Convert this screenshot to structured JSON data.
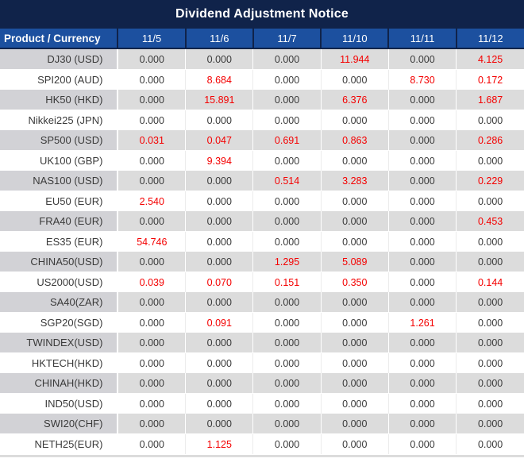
{
  "title": "Dividend Adjustment Notice",
  "colors": {
    "title_bg": "#10234a",
    "header_bg": "#1c509f",
    "row_gray": "#dcdcdc",
    "product_cell_gray": "#d2d2d6",
    "value_red": "#f40000",
    "value_black": "#3a3a3a"
  },
  "table": {
    "columns": [
      "Product / Currency",
      "11/5",
      "11/6",
      "11/7",
      "11/10",
      "11/11",
      "11/12"
    ],
    "rows": [
      {
        "product": "DJ30 (USD)",
        "values": [
          "0.000",
          "0.000",
          "0.000",
          "11.944",
          "0.000",
          "4.125"
        ],
        "red": [
          false,
          false,
          false,
          true,
          false,
          true
        ]
      },
      {
        "product": "SPI200 (AUD)",
        "values": [
          "0.000",
          "8.684",
          "0.000",
          "0.000",
          "8.730",
          "0.172"
        ],
        "red": [
          false,
          true,
          false,
          false,
          true,
          true
        ]
      },
      {
        "product": "HK50 (HKD)",
        "values": [
          "0.000",
          "15.891",
          "0.000",
          "6.376",
          "0.000",
          "1.687"
        ],
        "red": [
          false,
          true,
          false,
          true,
          false,
          true
        ]
      },
      {
        "product": "Nikkei225 (JPN)",
        "values": [
          "0.000",
          "0.000",
          "0.000",
          "0.000",
          "0.000",
          "0.000"
        ],
        "red": [
          false,
          false,
          false,
          false,
          false,
          false
        ]
      },
      {
        "product": "SP500 (USD)",
        "values": [
          "0.031",
          "0.047",
          "0.691",
          "0.863",
          "0.000",
          "0.286"
        ],
        "red": [
          true,
          true,
          true,
          true,
          false,
          true
        ]
      },
      {
        "product": "UK100 (GBP)",
        "values": [
          "0.000",
          "9.394",
          "0.000",
          "0.000",
          "0.000",
          "0.000"
        ],
        "red": [
          false,
          true,
          false,
          false,
          false,
          false
        ]
      },
      {
        "product": "NAS100 (USD)",
        "values": [
          "0.000",
          "0.000",
          "0.514",
          "3.283",
          "0.000",
          "0.229"
        ],
        "red": [
          false,
          false,
          true,
          true,
          false,
          true
        ]
      },
      {
        "product": "EU50 (EUR)",
        "values": [
          "2.540",
          "0.000",
          "0.000",
          "0.000",
          "0.000",
          "0.000"
        ],
        "red": [
          true,
          false,
          false,
          false,
          false,
          false
        ]
      },
      {
        "product": "FRA40 (EUR)",
        "values": [
          "0.000",
          "0.000",
          "0.000",
          "0.000",
          "0.000",
          "0.453"
        ],
        "red": [
          false,
          false,
          false,
          false,
          false,
          true
        ]
      },
      {
        "product": "ES35 (EUR)",
        "values": [
          "54.746",
          "0.000",
          "0.000",
          "0.000",
          "0.000",
          "0.000"
        ],
        "red": [
          true,
          false,
          false,
          false,
          false,
          false
        ]
      },
      {
        "product": "CHINA50(USD)",
        "values": [
          "0.000",
          "0.000",
          "1.295",
          "5.089",
          "0.000",
          "0.000"
        ],
        "red": [
          false,
          false,
          true,
          true,
          false,
          false
        ]
      },
      {
        "product": "US2000(USD)",
        "values": [
          "0.039",
          "0.070",
          "0.151",
          "0.350",
          "0.000",
          "0.144"
        ],
        "red": [
          true,
          true,
          true,
          true,
          false,
          true
        ]
      },
      {
        "product": "SA40(ZAR)",
        "values": [
          "0.000",
          "0.000",
          "0.000",
          "0.000",
          "0.000",
          "0.000"
        ],
        "red": [
          false,
          false,
          false,
          false,
          false,
          false
        ]
      },
      {
        "product": "SGP20(SGD)",
        "values": [
          "0.000",
          "0.091",
          "0.000",
          "0.000",
          "1.261",
          "0.000"
        ],
        "red": [
          false,
          true,
          false,
          false,
          true,
          false
        ]
      },
      {
        "product": "TWINDEX(USD)",
        "values": [
          "0.000",
          "0.000",
          "0.000",
          "0.000",
          "0.000",
          "0.000"
        ],
        "red": [
          false,
          false,
          false,
          false,
          false,
          false
        ]
      },
      {
        "product": "HKTECH(HKD)",
        "values": [
          "0.000",
          "0.000",
          "0.000",
          "0.000",
          "0.000",
          "0.000"
        ],
        "red": [
          false,
          false,
          false,
          false,
          false,
          false
        ]
      },
      {
        "product": "CHINAH(HKD)",
        "values": [
          "0.000",
          "0.000",
          "0.000",
          "0.000",
          "0.000",
          "0.000"
        ],
        "red": [
          false,
          false,
          false,
          false,
          false,
          false
        ]
      },
      {
        "product": "IND50(USD)",
        "values": [
          "0.000",
          "0.000",
          "0.000",
          "0.000",
          "0.000",
          "0.000"
        ],
        "red": [
          false,
          false,
          false,
          false,
          false,
          false
        ]
      },
      {
        "product": "SWI20(CHF)",
        "values": [
          "0.000",
          "0.000",
          "0.000",
          "0.000",
          "0.000",
          "0.000"
        ],
        "red": [
          false,
          false,
          false,
          false,
          false,
          false
        ]
      },
      {
        "product": "NETH25(EUR)",
        "values": [
          "0.000",
          "1.125",
          "0.000",
          "0.000",
          "0.000",
          "0.000"
        ],
        "red": [
          false,
          true,
          false,
          false,
          false,
          false
        ]
      }
    ]
  }
}
